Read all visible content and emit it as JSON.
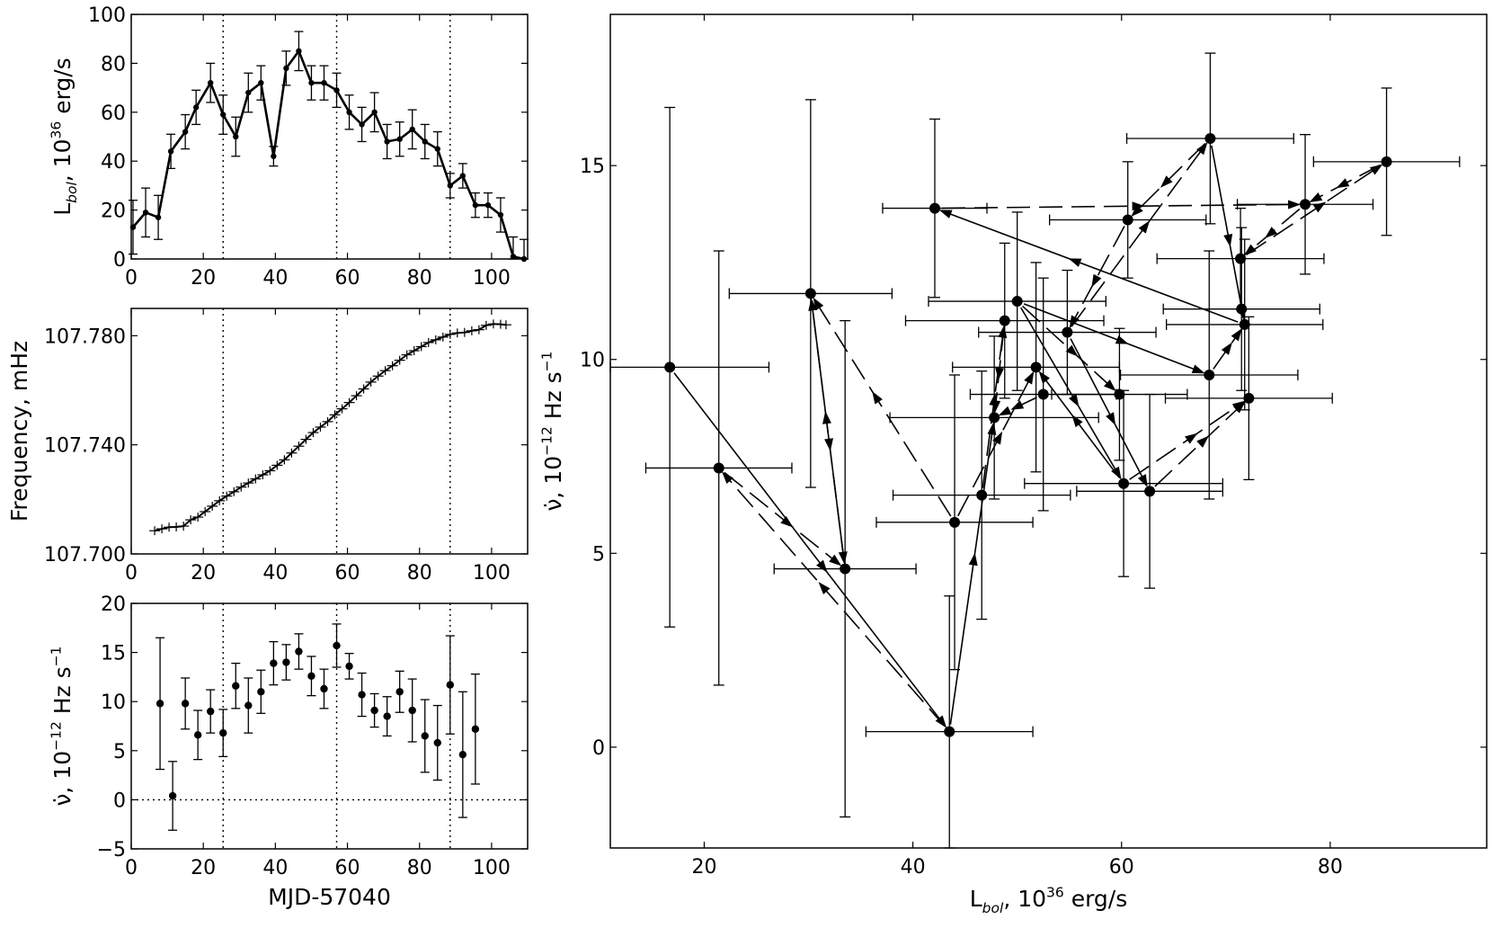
{
  "chart_data": [
    {
      "type": "line",
      "panel": "top-left",
      "xlabel": "",
      "ylabel": "L_bol, 10^36 erg/s",
      "ylabel_parts": [
        "L",
        "bol",
        ", 10",
        "36",
        " erg/s"
      ],
      "xlim": [
        0,
        110
      ],
      "ylim": [
        0,
        100
      ],
      "xticks": [
        0,
        20,
        40,
        60,
        80,
        100
      ],
      "yticks": [
        0,
        20,
        40,
        60,
        80,
        100
      ],
      "vlines": [
        25.5,
        57,
        88.5
      ],
      "x": [
        0.5,
        4,
        7.5,
        11,
        15,
        18,
        22,
        25.5,
        29,
        32.5,
        36,
        39.5,
        43,
        46.5,
        50,
        53.5,
        57,
        60.5,
        64,
        67.5,
        71,
        74.5,
        78,
        81.5,
        85,
        88.5,
        92,
        95.5,
        99,
        102.5,
        106,
        109
      ],
      "y": [
        13,
        19,
        17,
        44,
        52,
        62,
        72,
        59,
        50,
        68,
        72,
        42,
        78,
        85,
        72,
        72,
        69,
        60,
        55,
        60,
        48,
        49,
        53,
        48,
        45,
        30,
        34,
        22,
        22,
        18,
        1,
        0
      ],
      "err": [
        11,
        10,
        9,
        7,
        7,
        7,
        8,
        8,
        8,
        8,
        7,
        4,
        7,
        8,
        7,
        7,
        7,
        7,
        7,
        8,
        7,
        7,
        8,
        7,
        7,
        5,
        5,
        5,
        5,
        7,
        8,
        8
      ]
    },
    {
      "type": "line",
      "panel": "middle-left",
      "xlabel": "",
      "ylabel": "Frequency, mHz",
      "xlim": [
        0,
        110
      ],
      "ylim": [
        107.7,
        107.79
      ],
      "xticks": [
        0,
        20,
        40,
        60,
        80,
        100
      ],
      "yticks": [
        107.7,
        107.74,
        107.78
      ],
      "ytick_labels": [
        "107.700",
        "107.740",
        "107.780"
      ],
      "vlines": [
        25.5,
        57,
        88.5
      ],
      "x": [
        6.5,
        8.5,
        10.5,
        12.5,
        14.5,
        16.5,
        18.5,
        20.5,
        22.5,
        24.5,
        26.5,
        28.5,
        30.5,
        32.5,
        34.5,
        36.5,
        38.5,
        40.5,
        42.5,
        44.5,
        46.5,
        48.5,
        50.5,
        52.5,
        54.5,
        56.5,
        58.5,
        60.5,
        62.5,
        64.5,
        66.5,
        68.5,
        70.5,
        72.5,
        74.5,
        76.5,
        78.5,
        80.5,
        82.5,
        84.5,
        86.5,
        88.5,
        90.5,
        92.5,
        94.5,
        96.5,
        98.5,
        100.5,
        102.5,
        104
      ],
      "y": [
        107.7085,
        107.7092,
        107.7098,
        107.7099,
        107.7102,
        107.7125,
        107.7135,
        107.7155,
        107.7175,
        107.7195,
        107.7212,
        107.7228,
        107.7245,
        107.726,
        107.7275,
        107.729,
        107.7305,
        107.7325,
        107.7345,
        107.737,
        107.7395,
        107.742,
        107.7445,
        107.7465,
        107.7485,
        107.751,
        107.7532,
        107.7555,
        107.758,
        107.7605,
        107.763,
        107.7652,
        107.7672,
        107.769,
        107.771,
        107.773,
        107.7745,
        107.776,
        107.7775,
        107.7785,
        107.7795,
        107.7805,
        107.781,
        107.7812,
        107.7818,
        107.7822,
        107.7838,
        107.7843,
        107.7842,
        107.784
      ]
    },
    {
      "type": "scatter",
      "panel": "bottom-left",
      "xlabel": "MJD-57040",
      "ylabel": "ν̇, 10^−12 Hz s^−1",
      "ylabel_parts": [
        "ν̇, 10",
        "−12",
        " Hz s",
        "−1"
      ],
      "xlim": [
        0,
        110
      ],
      "ylim": [
        -5,
        20
      ],
      "xticks": [
        0,
        20,
        40,
        60,
        80,
        100
      ],
      "yticks": [
        -5,
        0,
        5,
        10,
        15,
        20
      ],
      "ytick_labels": [
        "−5",
        "0",
        "5",
        "10",
        "15",
        "20"
      ],
      "vlines": [
        25.5,
        57,
        88.5
      ],
      "hline": 0,
      "x": [
        8,
        11.5,
        15,
        18.5,
        22,
        25.5,
        29,
        32.5,
        36,
        39.5,
        43,
        46.5,
        50,
        53.5,
        57,
        60.5,
        64,
        67.5,
        71,
        74.5,
        78,
        81.5,
        85,
        88.5,
        92,
        95.5
      ],
      "y": [
        9.8,
        0.4,
        9.8,
        6.6,
        9,
        6.8,
        11.6,
        9.6,
        11,
        13.9,
        14,
        15.1,
        12.6,
        11.3,
        15.7,
        13.6,
        10.7,
        9.1,
        8.5,
        11,
        9.1,
        6.5,
        5.8,
        11.7,
        4.6,
        7.2
      ],
      "err": [
        6.7,
        3.5,
        2.6,
        2.5,
        2.2,
        2.4,
        2.3,
        2.8,
        2.2,
        2.2,
        1.8,
        1.8,
        2,
        2,
        2.2,
        1.3,
        2.2,
        1.7,
        2,
        2.1,
        3.2,
        3.7,
        3.8,
        5,
        6.4,
        5.6
      ]
    },
    {
      "type": "scatter",
      "panel": "right",
      "xlabel": "L_bol, 10^36 erg/s",
      "xlabel_parts": [
        "L",
        "bol",
        ", 10",
        "36",
        " erg/s"
      ],
      "ylabel": "ν̇, 10^−12 Hz s^−1",
      "ylabel_parts": [
        "ν̇, 10",
        "−12",
        " Hz s",
        "−1"
      ],
      "xlim": [
        11,
        95
      ],
      "ylim": [
        -2.6,
        18.9
      ],
      "xticks": [
        20,
        40,
        60,
        80
      ],
      "yticks": [
        0,
        5,
        10,
        15
      ],
      "points": [
        {
          "x": 16.7,
          "y": 9.8,
          "xerr": 9.5,
          "yerr": 6.7
        },
        {
          "x": 43.5,
          "y": 0.4,
          "xerr": 8,
          "yerr": 3.5
        },
        {
          "x": 21.4,
          "y": 7.2,
          "xerr": 7,
          "yerr": 5.6
        },
        {
          "x": 33.5,
          "y": 4.6,
          "xerr": 6.8,
          "yerr": 6.4
        },
        {
          "x": 30.2,
          "y": 11.7,
          "xerr": 7.8,
          "yerr": 5
        },
        {
          "x": 42.1,
          "y": 13.9,
          "xerr": 5,
          "yerr": 2.3
        },
        {
          "x": 44,
          "y": 5.8,
          "xerr": 7.5,
          "yerr": 3.8
        },
        {
          "x": 46.6,
          "y": 6.5,
          "xerr": 8.5,
          "yerr": 3.2
        },
        {
          "x": 47.8,
          "y": 8.5,
          "xerr": 10,
          "yerr": 2.1
        },
        {
          "x": 48.8,
          "y": 11,
          "xerr": 9.5,
          "yerr": 2
        },
        {
          "x": 50,
          "y": 11.5,
          "xerr": 8.5,
          "yerr": 2.3
        },
        {
          "x": 51.8,
          "y": 9.8,
          "xerr": 8,
          "yerr": 2.7
        },
        {
          "x": 52.5,
          "y": 9.1,
          "xerr": 7,
          "yerr": 3
        },
        {
          "x": 54.8,
          "y": 10.7,
          "xerr": 8.5,
          "yerr": 1.6
        },
        {
          "x": 59.8,
          "y": 9.1,
          "xerr": 6.5,
          "yerr": 1.7
        },
        {
          "x": 60.2,
          "y": 6.8,
          "xerr": 9.5,
          "yerr": 2.4
        },
        {
          "x": 60.6,
          "y": 13.6,
          "xerr": 7.5,
          "yerr": 1.5
        },
        {
          "x": 62.7,
          "y": 6.6,
          "xerr": 7,
          "yerr": 2.5
        },
        {
          "x": 68.5,
          "y": 15.7,
          "xerr": 8,
          "yerr": 2.2
        },
        {
          "x": 68.4,
          "y": 9.6,
          "xerr": 8.5,
          "yerr": 3.2
        },
        {
          "x": 71.4,
          "y": 12.6,
          "xerr": 8,
          "yerr": 1.3
        },
        {
          "x": 71.5,
          "y": 11.3,
          "xerr": 7.5,
          "yerr": 2.1
        },
        {
          "x": 71.8,
          "y": 10.9,
          "xerr": 7.5,
          "yerr": 2.2
        },
        {
          "x": 72.2,
          "y": 9,
          "xerr": 8,
          "yerr": 2.1
        },
        {
          "x": 77.6,
          "y": 14,
          "xerr": 6.5,
          "yerr": 1.8
        },
        {
          "x": 85.4,
          "y": 15.1,
          "xerr": 7,
          "yerr": 1.9
        }
      ],
      "arrows": [
        {
          "from": [
            16.7,
            9.8
          ],
          "to": [
            43.5,
            0.4
          ],
          "style": "solid"
        },
        {
          "from": [
            43.5,
            0.4
          ],
          "to": [
            21.4,
            7.2
          ],
          "style": "dashed"
        },
        {
          "from": [
            21.4,
            7.2
          ],
          "to": [
            33.5,
            4.6
          ],
          "style": "dashed"
        },
        {
          "from": [
            33.5,
            4.6
          ],
          "to": [
            30.2,
            11.7
          ],
          "style": "dashed"
        },
        {
          "from": [
            30.2,
            11.7
          ],
          "to": [
            33.5,
            4.6
          ],
          "style": "solid"
        },
        {
          "from": [
            43.5,
            0.4
          ],
          "to": [
            47.8,
            8.5
          ],
          "style": "solid"
        },
        {
          "from": [
            44,
            5.8
          ],
          "to": [
            30.2,
            11.7
          ],
          "style": "dashed"
        },
        {
          "from": [
            44,
            5.8
          ],
          "to": [
            51.8,
            9.8
          ],
          "style": "dashed"
        },
        {
          "from": [
            46.6,
            6.5
          ],
          "to": [
            48.8,
            11
          ],
          "style": "dashed"
        },
        {
          "from": [
            48.8,
            11
          ],
          "to": [
            47.8,
            8.5
          ],
          "style": "dashed"
        },
        {
          "from": [
            52.5,
            9.1
          ],
          "to": [
            47.8,
            8.5
          ],
          "style": "dashed"
        },
        {
          "from": [
            50,
            11.5
          ],
          "to": [
            59.8,
            9.1
          ],
          "style": "dashed"
        },
        {
          "from": [
            50,
            11.5
          ],
          "to": [
            60.2,
            6.8
          ],
          "style": "solid"
        },
        {
          "from": [
            60.2,
            6.8
          ],
          "to": [
            51.8,
            9.8
          ],
          "style": "solid"
        },
        {
          "from": [
            54.8,
            10.7
          ],
          "to": [
            62.7,
            6.6
          ],
          "style": "solid"
        },
        {
          "from": [
            60.6,
            13.6
          ],
          "to": [
            54.8,
            10.7
          ],
          "style": "dashed"
        },
        {
          "from": [
            68.5,
            15.7
          ],
          "to": [
            60.6,
            13.6
          ],
          "style": "dashed"
        },
        {
          "from": [
            68.5,
            15.7
          ],
          "to": [
            71.8,
            10.9
          ],
          "style": "solid"
        },
        {
          "from": [
            42.1,
            13.9
          ],
          "to": [
            77.6,
            14
          ],
          "style": "dashed"
        },
        {
          "from": [
            71.8,
            10.9
          ],
          "to": [
            42.1,
            13.9
          ],
          "style": "solid"
        },
        {
          "from": [
            50,
            11.5
          ],
          "to": [
            68.4,
            9.6
          ],
          "style": "solid"
        },
        {
          "from": [
            68.4,
            9.6
          ],
          "to": [
            71.8,
            10.9
          ],
          "style": "dashed"
        },
        {
          "from": [
            62.7,
            6.6
          ],
          "to": [
            72.2,
            9
          ],
          "style": "dashed"
        },
        {
          "from": [
            60.2,
            6.8
          ],
          "to": [
            72.2,
            9
          ],
          "style": "dashed"
        },
        {
          "from": [
            71.4,
            12.6
          ],
          "to": [
            85.4,
            15.1
          ],
          "style": "dashed"
        },
        {
          "from": [
            85.4,
            15.1
          ],
          "to": [
            77.6,
            14
          ],
          "style": "dashed"
        },
        {
          "from": [
            77.6,
            14
          ],
          "to": [
            71.4,
            12.6
          ],
          "style": "dashed"
        },
        {
          "from": [
            54.8,
            10.7
          ],
          "to": [
            68.5,
            15.7
          ],
          "style": "dashed"
        }
      ]
    }
  ]
}
